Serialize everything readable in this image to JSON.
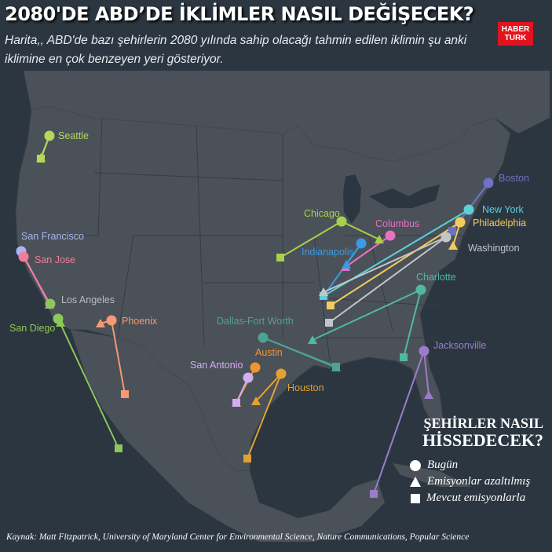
{
  "header": {
    "title": "2080'DE ABD’DE İKLİMLER NASIL DEĞİŞECEK?",
    "subtitle": "Harita,, ABD'de bazı şehirlerin 2080 yılında sahip olacağı tahmin edilen iklimin şu anki iklimine en çok benzeyen yeri gösteriyor.",
    "logo_line1": "HABER",
    "logo_line2": "TURK"
  },
  "colors": {
    "background": "#2b3640",
    "land": "#4b5159",
    "logo": "#e1141e"
  },
  "cities": [
    {
      "name": "Seattle",
      "color": "#b7d65c"
    },
    {
      "name": "San Francisco",
      "color": "#a9b6f2"
    },
    {
      "name": "San Jose",
      "color": "#f47b9c"
    },
    {
      "name": "Los Angeles",
      "color": "#8ec85a",
      "label_color": "#b8bcc0"
    },
    {
      "name": "San Diego",
      "color": "#8ec85a"
    },
    {
      "name": "Phoenix",
      "color": "#f59a72"
    },
    {
      "name": "Dallas-Fort Worth",
      "color": "#4aa594"
    },
    {
      "name": "Austin",
      "color": "#f0962c"
    },
    {
      "name": "San Antonio",
      "color": "#d0aef0"
    },
    {
      "name": "Houston",
      "color": "#e2a232"
    },
    {
      "name": "Chicago",
      "color": "#a8d04a"
    },
    {
      "name": "Columbus",
      "color": "#e772c2"
    },
    {
      "name": "Indianapolis",
      "color": "#3a9be2"
    },
    {
      "name": "Boston",
      "color": "#6e72c4"
    },
    {
      "name": "New York",
      "color": "#5cd0d8"
    },
    {
      "name": "Philadelphia",
      "color": "#f4cc5e"
    },
    {
      "name": "Washington",
      "color": "#c2c6ca"
    },
    {
      "name": "Charlotte",
      "color": "#4fbaa0"
    },
    {
      "name": "Jacksonville",
      "color": "#9c7cca"
    }
  ],
  "legend": {
    "title_line1": "ŞEHİRLER NASIL",
    "title_line2": "HİSSEDECEK?",
    "items": [
      {
        "symbol": "circle",
        "label": "Bugün"
      },
      {
        "symbol": "triangle",
        "label": "Emisyonlar azaltılmış"
      },
      {
        "symbol": "square",
        "label": "Mevcut emisyonlarla"
      }
    ]
  },
  "source": "Kaynak: Matt Fitzpatrick, University of Maryland Center for Environmental Science, Nature Communications, Popular Science"
}
